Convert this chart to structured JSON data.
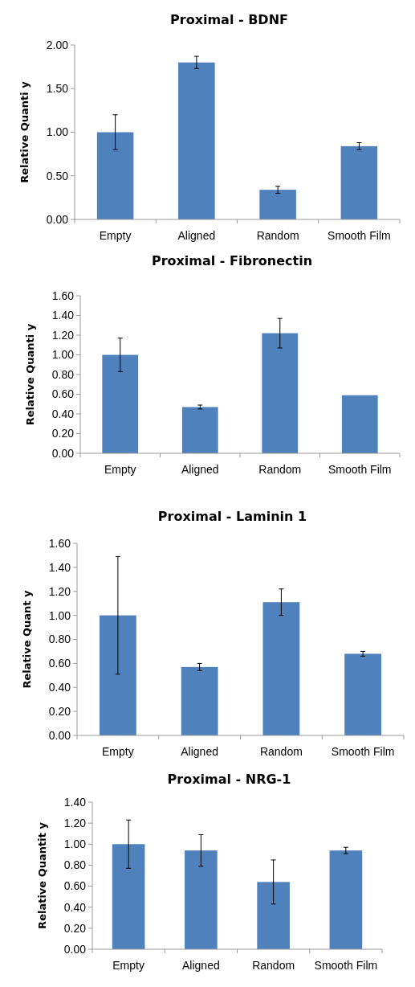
{
  "chart_data": [
    {
      "type": "bar",
      "title": "Proximal - BDNF",
      "ylabel": "Relative Quanti y",
      "categories": [
        "Empty",
        "Aligned",
        "Random",
        "Smooth Film"
      ],
      "values": [
        1.0,
        1.8,
        0.34,
        0.84
      ],
      "errors": [
        0.2,
        0.07,
        0.04,
        0.04
      ],
      "color": "#4f81bd",
      "ylim": [
        0,
        2
      ],
      "yticks": [
        {
          "value": 0,
          "label": "0.00"
        },
        {
          "value": 0.5,
          "label": "0.50"
        },
        {
          "value": 1,
          "label": "1.00"
        },
        {
          "value": 1.5,
          "label": "1.50"
        },
        {
          "value": 2,
          "label": "2.00"
        }
      ]
    },
    {
      "type": "bar",
      "title": "Proximal - Fibronectin",
      "ylabel": "Relative Quanti y",
      "categories": [
        "Empty",
        "Aligned",
        "Random",
        "Smooth Film"
      ],
      "values": [
        1.0,
        0.47,
        1.22,
        0.59
      ],
      "errors": [
        0.17,
        0.02,
        0.15,
        null
      ],
      "color": "#4f81bd",
      "ylim": [
        0,
        1.6
      ],
      "yticks": [
        {
          "value": 0,
          "label": "0.00"
        },
        {
          "value": 0.2,
          "label": "0.20"
        },
        {
          "value": 0.4,
          "label": "0.40"
        },
        {
          "value": 0.6,
          "label": "0.60"
        },
        {
          "value": 0.8,
          "label": "0.80"
        },
        {
          "value": 1,
          "label": "1.00"
        },
        {
          "value": 1.2,
          "label": "1.20"
        },
        {
          "value": 1.4,
          "label": "1.40"
        },
        {
          "value": 1.6,
          "label": "1.60"
        }
      ]
    },
    {
      "type": "bar",
      "title": "Proximal - Laminin 1",
      "ylabel": "Relative Quant y",
      "categories": [
        "Empty",
        "Aligned",
        "Random",
        "Smooth Film"
      ],
      "values": [
        1.0,
        0.57,
        1.11,
        0.68
      ],
      "errors": [
        0.49,
        0.03,
        0.11,
        0.02
      ],
      "color": "#4f81bd",
      "ylim": [
        0,
        1.6
      ],
      "yticks": [
        {
          "value": 0,
          "label": "0.00"
        },
        {
          "value": 0.2,
          "label": "0.20"
        },
        {
          "value": 0.4,
          "label": "0.40"
        },
        {
          "value": 0.6,
          "label": "0.60"
        },
        {
          "value": 0.8,
          "label": "0.80"
        },
        {
          "value": 1,
          "label": "1.00"
        },
        {
          "value": 1.2,
          "label": "1.20"
        },
        {
          "value": 1.4,
          "label": "1.40"
        },
        {
          "value": 1.6,
          "label": "1.60"
        }
      ]
    },
    {
      "type": "bar",
      "title": "Proximal - NRG-1",
      "ylabel": "Relative Quantit y",
      "categories": [
        "Empty",
        "Aligned",
        "Random",
        "Smooth Film"
      ],
      "values": [
        1.0,
        0.94,
        0.64,
        0.94
      ],
      "errors": [
        0.23,
        0.15,
        0.21,
        0.03
      ],
      "color": "#4f81bd",
      "ylim": [
        0,
        1.4
      ],
      "yticks": [
        {
          "value": 0,
          "label": "0.00"
        },
        {
          "value": 0.2,
          "label": "0.20"
        },
        {
          "value": 0.4,
          "label": "0.40"
        },
        {
          "value": 0.6,
          "label": "0.60"
        },
        {
          "value": 0.8,
          "label": "0.80"
        },
        {
          "value": 1,
          "label": "1.00"
        },
        {
          "value": 1.2,
          "label": "1.20"
        },
        {
          "value": 1.4,
          "label": "1.40"
        }
      ]
    }
  ]
}
